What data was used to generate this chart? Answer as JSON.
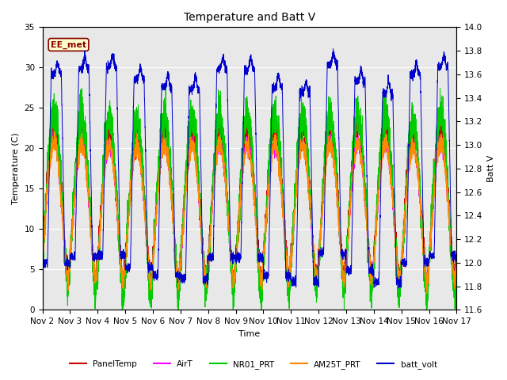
{
  "title": "Temperature and Batt V",
  "xlabel": "Time",
  "ylabel_left": "Temperature (C)",
  "ylabel_right": "Batt V",
  "ylim_left": [
    0,
    35
  ],
  "ylim_right": [
    11.6,
    14.0
  ],
  "yticks_left": [
    0,
    5,
    10,
    15,
    20,
    25,
    30,
    35
  ],
  "yticks_right": [
    11.6,
    11.8,
    12.0,
    12.2,
    12.4,
    12.6,
    12.8,
    13.0,
    13.2,
    13.4,
    13.6,
    13.8,
    14.0
  ],
  "xlim": [
    0,
    15
  ],
  "xtick_labels": [
    "Nov 2",
    "Nov 3",
    "Nov 4",
    "Nov 5",
    "Nov 6",
    "Nov 7",
    "Nov 8",
    "Nov 9",
    "Nov 10",
    "Nov 11",
    "Nov 12",
    "Nov 13",
    "Nov 14",
    "Nov 15",
    "Nov 16",
    "Nov 17"
  ],
  "xtick_positions": [
    0,
    1,
    2,
    3,
    4,
    5,
    6,
    7,
    8,
    9,
    10,
    11,
    12,
    13,
    14,
    15
  ],
  "colors": {
    "PanelTemp": "#cc0000",
    "AirT": "#ff00ff",
    "NR01_PRT": "#00cc00",
    "AM25T_PRT": "#ff8800",
    "batt_volt": "#0000cc"
  },
  "legend_label": "EE_met",
  "fig_facecolor": "#ffffff",
  "plot_facecolor": "#e8e8e8",
  "grid_color": "#ffffff"
}
